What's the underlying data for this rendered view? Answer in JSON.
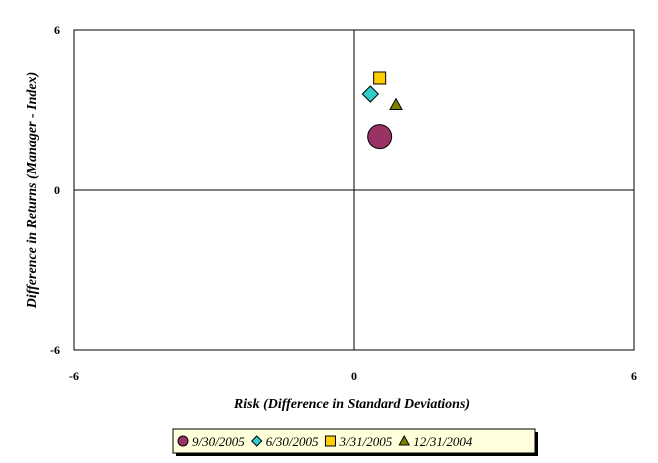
{
  "chart_data": {
    "type": "scatter",
    "title": "",
    "xlabel": "Risk (Difference in Standard Deviations)",
    "ylabel": "Difference in Returns (Manager - Index)",
    "xlim": [
      -6,
      6
    ],
    "ylim": [
      -6,
      6
    ],
    "x_ticks": [
      "-6",
      "0",
      "6"
    ],
    "y_ticks": [
      "6",
      "0",
      "-6"
    ],
    "grid": false,
    "legend_position": "bottom",
    "series": [
      {
        "name": "9/30/2005",
        "marker": "circle",
        "color": "#993366",
        "x": 0.55,
        "y": 2.0
      },
      {
        "name": "6/30/2005",
        "marker": "diamond",
        "color": "#33CCCC",
        "x": 0.35,
        "y": 3.6
      },
      {
        "name": "3/31/2005",
        "marker": "square",
        "color": "#FFCC00",
        "x": 0.55,
        "y": 4.2
      },
      {
        "name": "12/31/2004",
        "marker": "triangle",
        "color": "#808000",
        "x": 0.9,
        "y": 3.2
      }
    ]
  }
}
